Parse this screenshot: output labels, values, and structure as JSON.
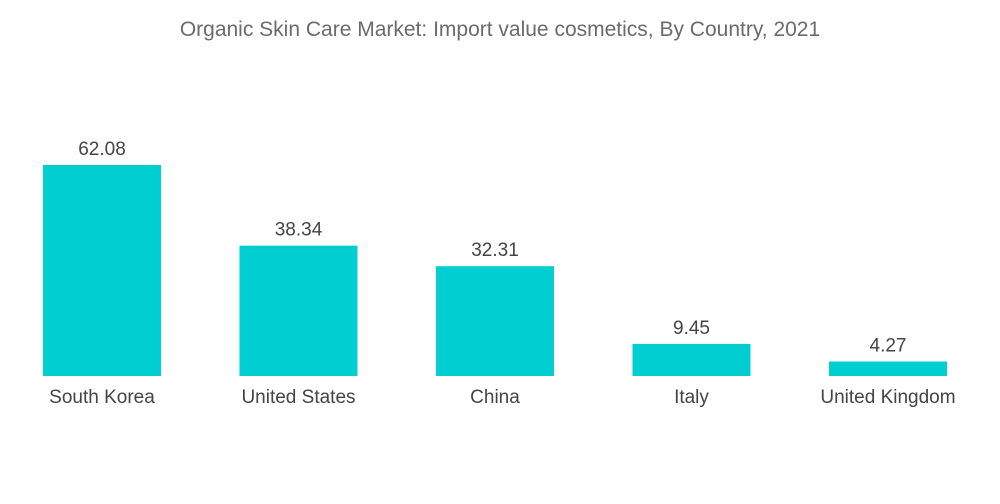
{
  "chart_data": {
    "type": "bar",
    "title": "Organic Skin Care Market: Import value cosmetics, By Country, 2021",
    "xlabel": "",
    "ylabel": "",
    "categories": [
      "South Korea",
      "United States",
      "China",
      "Italy",
      "United Kingdom"
    ],
    "values": [
      62.08,
      38.34,
      32.31,
      9.45,
      4.27
    ],
    "ylim": [
      0,
      62.08
    ],
    "grid": false,
    "legend": "none",
    "bar_color": "#00CED1"
  }
}
